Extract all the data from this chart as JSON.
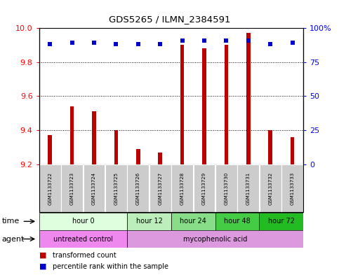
{
  "title": "GDS5265 / ILMN_2384591",
  "samples": [
    "GSM1133722",
    "GSM1133723",
    "GSM1133724",
    "GSM1133725",
    "GSM1133726",
    "GSM1133727",
    "GSM1133728",
    "GSM1133729",
    "GSM1133730",
    "GSM1133731",
    "GSM1133732",
    "GSM1133733"
  ],
  "transformed_counts": [
    9.37,
    9.54,
    9.51,
    9.4,
    9.29,
    9.27,
    9.9,
    9.88,
    9.9,
    9.97,
    9.4,
    9.36
  ],
  "percentile_ranks": [
    88,
    89,
    89,
    88,
    88,
    88,
    91,
    91,
    91,
    91,
    88,
    89
  ],
  "ymin": 9.2,
  "ymax": 10.0,
  "yticks": [
    9.2,
    9.4,
    9.6,
    9.8,
    10.0
  ],
  "y2ticks": [
    0,
    25,
    50,
    75,
    100
  ],
  "bar_color": "#bb0000",
  "dot_color": "#0000cc",
  "time_groups": [
    {
      "label": "hour 0",
      "start": 0,
      "end": 4,
      "color": "#ddffdd"
    },
    {
      "label": "hour 12",
      "start": 4,
      "end": 6,
      "color": "#bbeebb"
    },
    {
      "label": "hour 24",
      "start": 6,
      "end": 8,
      "color": "#88dd88"
    },
    {
      "label": "hour 48",
      "start": 8,
      "end": 10,
      "color": "#44cc44"
    },
    {
      "label": "hour 72",
      "start": 10,
      "end": 12,
      "color": "#22bb22"
    }
  ],
  "agent_groups": [
    {
      "label": "untreated control",
      "start": 0,
      "end": 4,
      "color": "#ee88ee"
    },
    {
      "label": "mycophenolic acid",
      "start": 4,
      "end": 12,
      "color": "#dd99dd"
    }
  ],
  "sample_bg": "#cccccc",
  "bg_color": "#ffffff",
  "border_color": "#000000"
}
